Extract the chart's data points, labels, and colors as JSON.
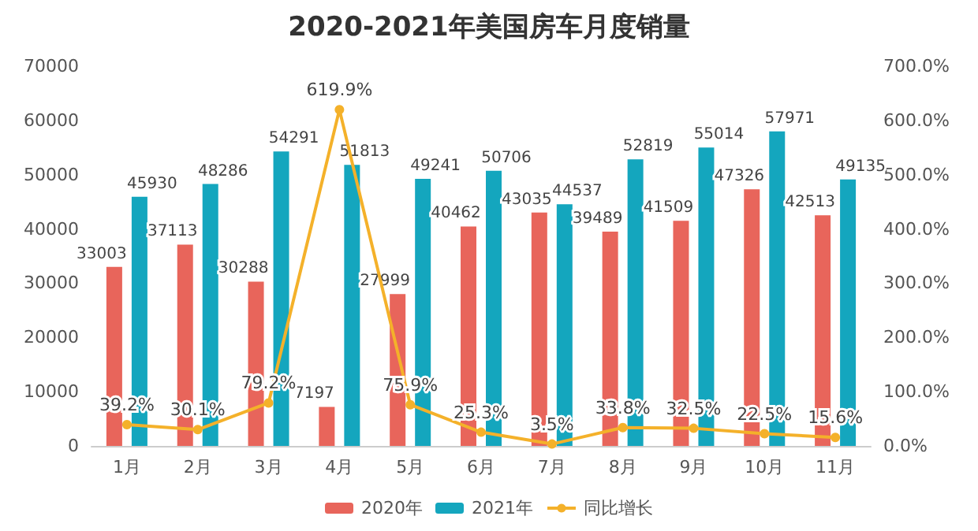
{
  "chart_data": {
    "type": "bar",
    "title": "2020-2021年美国房车月度销量",
    "categories": [
      "1月",
      "2月",
      "3月",
      "4月",
      "5月",
      "6月",
      "7月",
      "8月",
      "9月",
      "10月",
      "11月"
    ],
    "series": [
      {
        "name": "2020年",
        "color": "#e8655b",
        "values": [
          33003,
          37113,
          30288,
          7197,
          27999,
          40462,
          43035,
          39489,
          41509,
          47326,
          42513
        ]
      },
      {
        "name": "2021年",
        "color": "#14a6be",
        "values": [
          45930,
          48286,
          54291,
          51813,
          49241,
          50706,
          44537,
          52819,
          55014,
          57971,
          49135
        ]
      },
      {
        "name": "同比增长",
        "type": "line",
        "axis": "y2",
        "color": "#f4b12a",
        "values": [
          39.2,
          30.1,
          79.2,
          619.9,
          75.9,
          25.3,
          3.5,
          33.8,
          32.5,
          22.5,
          15.6
        ],
        "value_labels": [
          "39.2%",
          "30.1%",
          "79.2%",
          "619.9%",
          "75.9%",
          "25.3%",
          "3.5%",
          "33.8%",
          "32.5%",
          "22.5%",
          "15.6%"
        ]
      }
    ],
    "ylim": [
      0,
      70000
    ],
    "yticks": [
      0,
      10000,
      20000,
      30000,
      40000,
      50000,
      60000,
      70000
    ],
    "y2lim": [
      0,
      700
    ],
    "y2ticks": [
      {
        "value": 0,
        "label": "0.0%"
      },
      {
        "value": 100,
        "label": "100.0%"
      },
      {
        "value": 200,
        "label": "200.0%"
      },
      {
        "value": 300,
        "label": "300.0%"
      },
      {
        "value": 400,
        "label": "400.0%"
      },
      {
        "value": 500,
        "label": "500.0%"
      },
      {
        "value": 600,
        "label": "600.0%"
      },
      {
        "value": 700,
        "label": "700.0%"
      }
    ],
    "data_labels": true,
    "grid": false,
    "legend": "bottom",
    "marker": "circle",
    "line_style": "solid"
  }
}
